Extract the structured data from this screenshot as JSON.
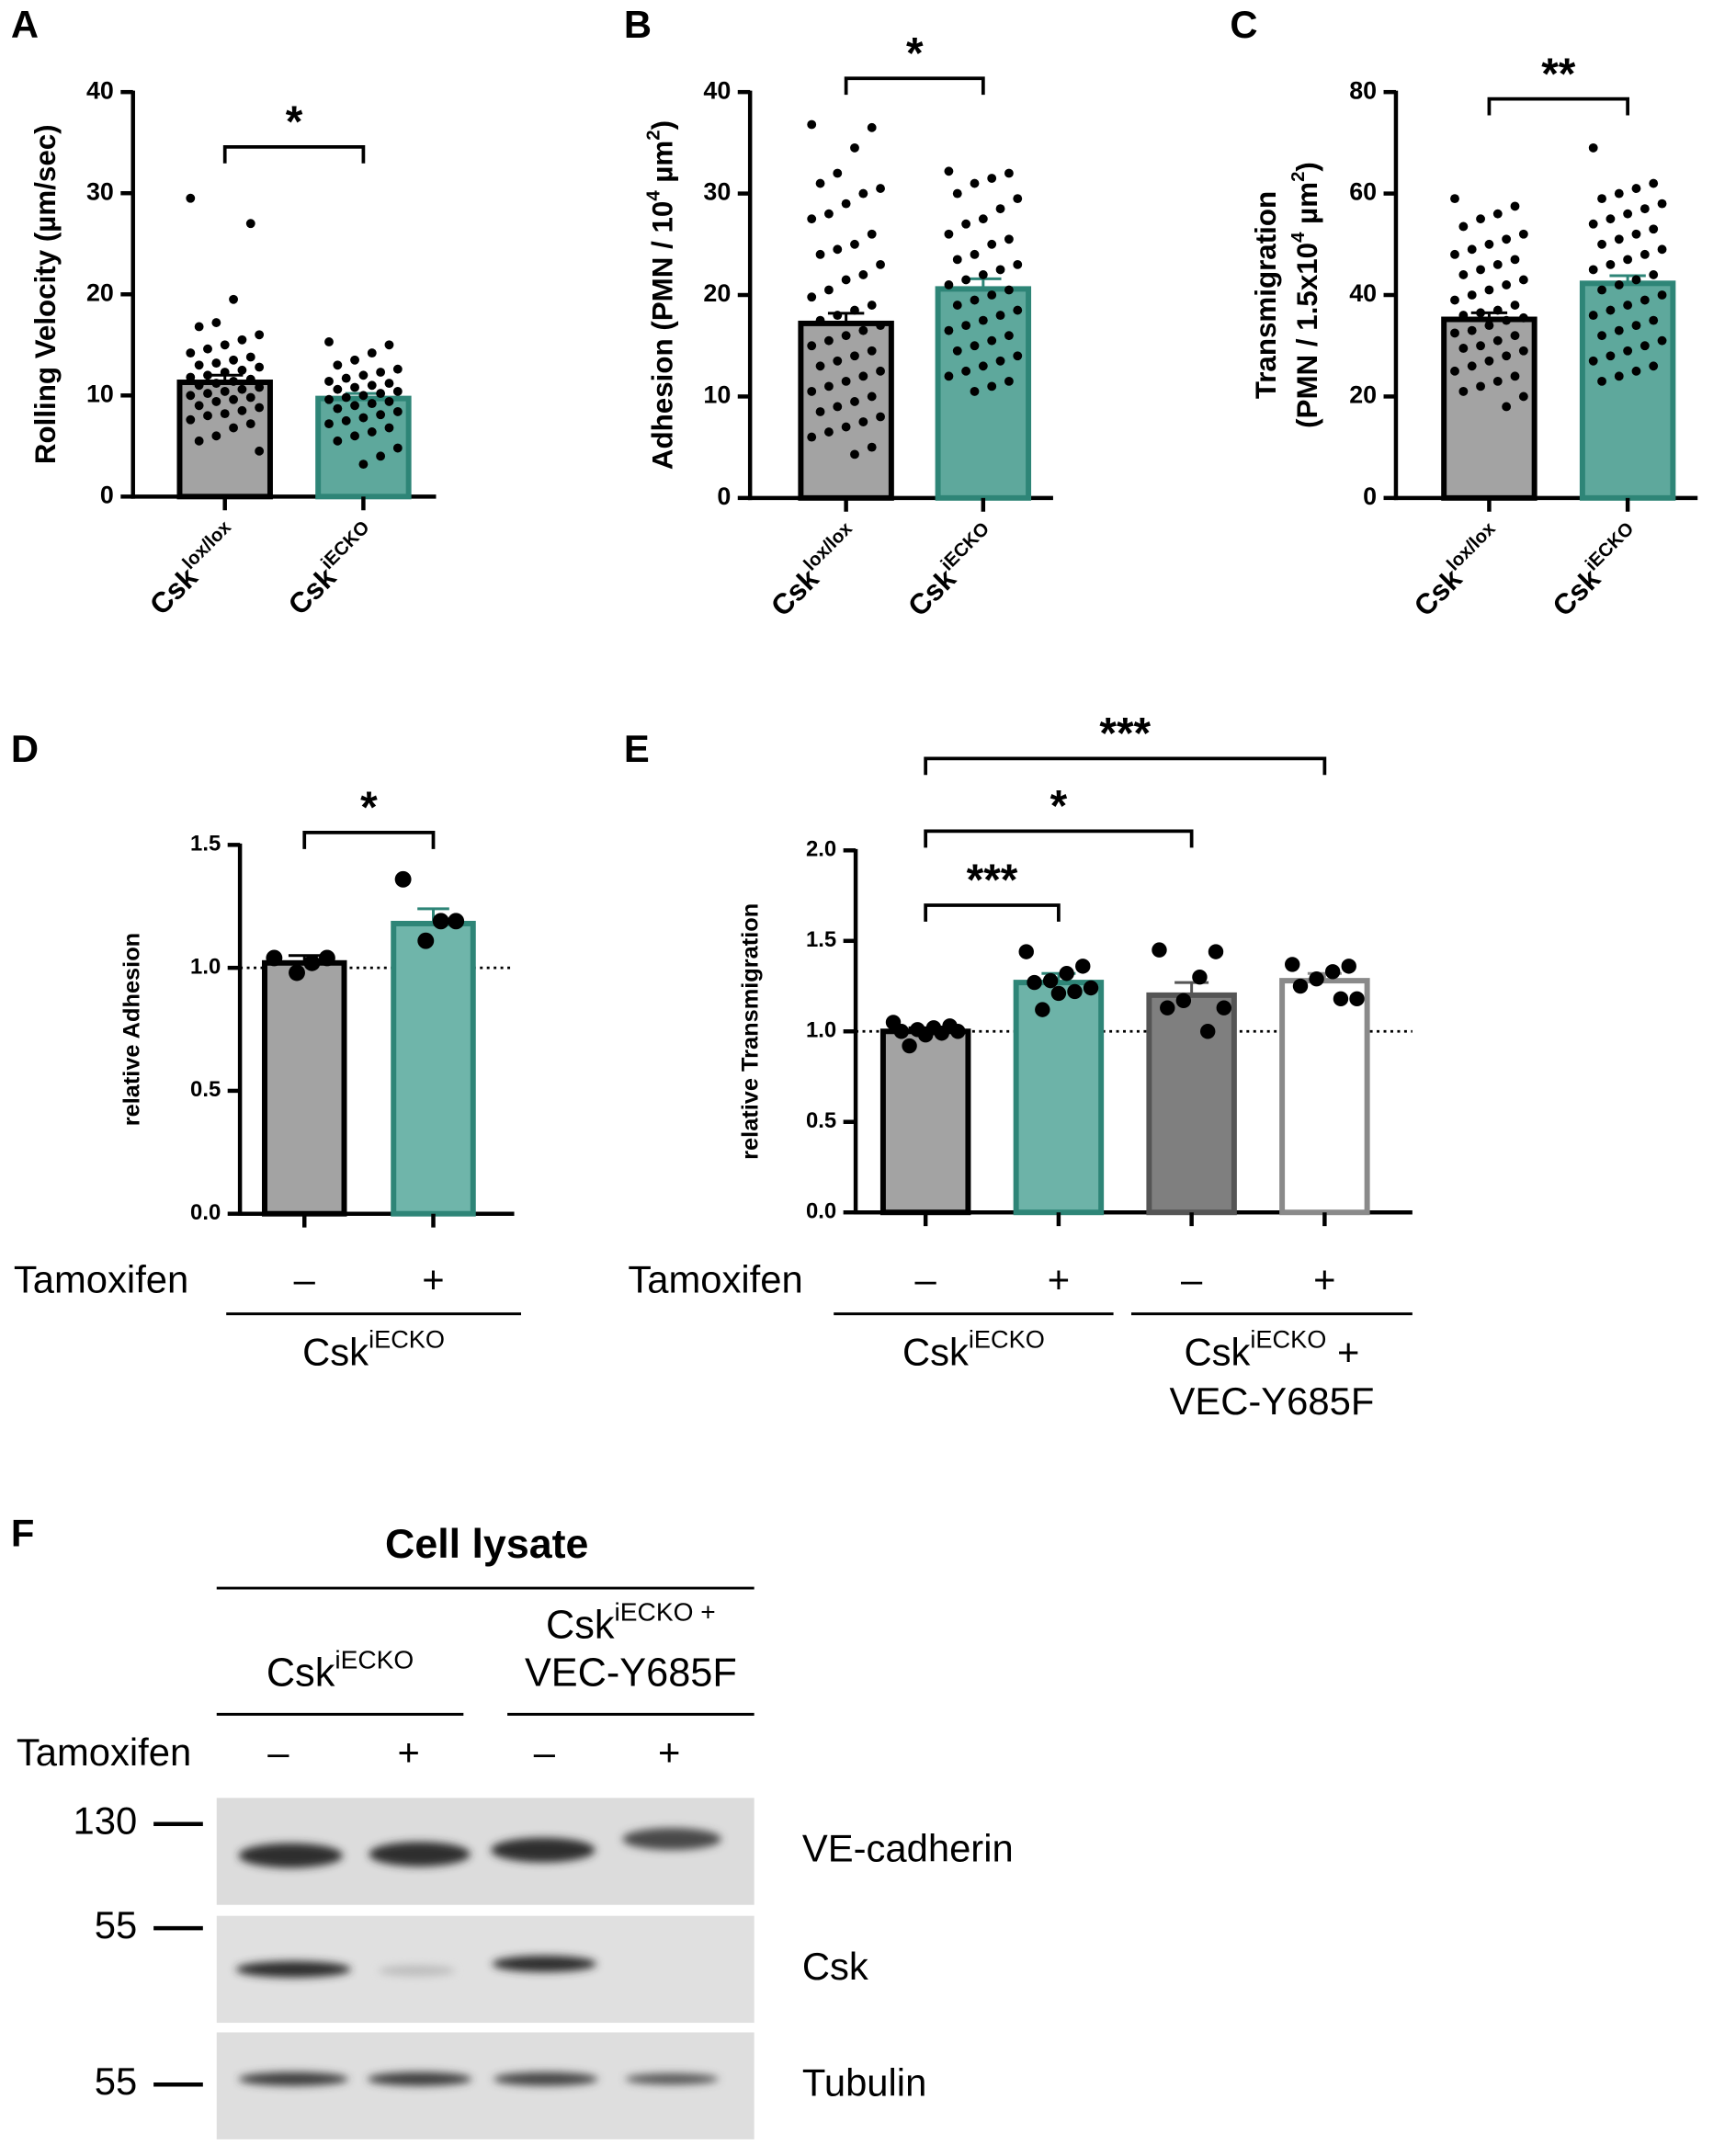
{
  "chart_data": [
    {
      "panel": "A",
      "type": "bar",
      "ylabel": [
        [
          {
            "text": "Rolling Velocity (µm/sec)"
          }
        ]
      ],
      "categories": [
        [
          {
            "text": "Csk"
          },
          {
            "text": "lox/lox",
            "sup": true
          }
        ],
        [
          {
            "text": "Csk"
          },
          {
            "text": "iECKO",
            "sup": true
          }
        ]
      ],
      "values": [
        11.3,
        9.7
      ],
      "errors": [
        0.7,
        0.5
      ],
      "points": [
        [
          29.5,
          27,
          19.5,
          17.2,
          16.8,
          16,
          15.5,
          15,
          14.6,
          14.2,
          13.8,
          13.5,
          13.2,
          13,
          12.8,
          12.5,
          12.3,
          12,
          11.8,
          11.6,
          11.4,
          11.2,
          11,
          10.8,
          10.6,
          10.4,
          10.2,
          10,
          9.8,
          9.6,
          9.4,
          9,
          8.8,
          8.5,
          8.2,
          8,
          7.6,
          7.2,
          6.8,
          6,
          5.5,
          4.5
        ],
        [
          15.3,
          15,
          14.2,
          13.5,
          13,
          12.6,
          12.3,
          12,
          11.7,
          11.4,
          11.2,
          11,
          10.8,
          10.6,
          10.4,
          10.2,
          10,
          9.8,
          9.6,
          9.4,
          9.2,
          9,
          8.7,
          8.4,
          8.1,
          7.8,
          7.5,
          7.2,
          6.8,
          6.4,
          6,
          5.5,
          4.8,
          4,
          3.2
        ]
      ],
      "colors": [
        "#a3a3a3",
        "#5ea89c"
      ],
      "edge_colors": [
        "#000000",
        "#2e8577"
      ],
      "ylim": [
        0,
        40
      ],
      "yticks": [
        0,
        10,
        20,
        30,
        40
      ],
      "significance": [
        {
          "groups": [
            0,
            1
          ],
          "label": "*"
        }
      ]
    },
    {
      "panel": "B",
      "type": "bar",
      "ylabel": [
        [
          {
            "text": "Adhesion (PMN / 10"
          },
          {
            "text": "4",
            "sup": true
          },
          {
            "text": " µm"
          },
          {
            "text": "2",
            "sup": true
          },
          {
            "text": ")"
          }
        ]
      ],
      "categories": [
        [
          {
            "text": "Csk"
          },
          {
            "text": "lox/lox",
            "sup": true
          }
        ],
        [
          {
            "text": "Csk"
          },
          {
            "text": "iECKO",
            "sup": true
          }
        ]
      ],
      "values": [
        17.2,
        20.6
      ],
      "errors": [
        1.0,
        1.0
      ],
      "points": [
        [
          36.8,
          36.5,
          34.5,
          32,
          31,
          30.5,
          30,
          29,
          28,
          27.5,
          26,
          25,
          24.5,
          24,
          23,
          22,
          21.5,
          20.5,
          19.8,
          19,
          18.5,
          18,
          17.5,
          17,
          16.5,
          16,
          15.5,
          15,
          14.5,
          14,
          13.5,
          13,
          12.5,
          12,
          11.5,
          11,
          10.5,
          10,
          9.5,
          9,
          8.5,
          8,
          7.5,
          7,
          6.5,
          6,
          5,
          4.3
        ],
        [
          32.2,
          32,
          31.5,
          31,
          30,
          29.5,
          28.5,
          27.5,
          27,
          26,
          25.5,
          25,
          24,
          23.5,
          23,
          22.5,
          22,
          21.5,
          21,
          20.5,
          20,
          19.5,
          19,
          18.5,
          18,
          17.5,
          17,
          16.5,
          16,
          15.5,
          15,
          14.5,
          14,
          13.5,
          13,
          12.5,
          12,
          11.5,
          11,
          10.5
        ]
      ],
      "colors": [
        "#a3a3a3",
        "#5ea89c"
      ],
      "edge_colors": [
        "#000000",
        "#2e8577"
      ],
      "ylim": [
        0,
        40
      ],
      "yticks": [
        0,
        10,
        20,
        30,
        40
      ],
      "significance": [
        {
          "groups": [
            0,
            1
          ],
          "label": "*"
        }
      ]
    },
    {
      "panel": "C",
      "type": "bar",
      "ylabel": [
        [
          {
            "text": "Transmigration"
          }
        ],
        [
          {
            "text": "(PMN / 1.5x10"
          },
          {
            "text": "4",
            "sup": true
          },
          {
            "text": " µm"
          },
          {
            "text": "2",
            "sup": true
          },
          {
            "text": ")"
          }
        ]
      ],
      "categories": [
        [
          {
            "text": "Csk"
          },
          {
            "text": "lox/lox",
            "sup": true
          }
        ],
        [
          {
            "text": "Csk"
          },
          {
            "text": "iECKO",
            "sup": true
          }
        ]
      ],
      "values": [
        35.2,
        42.3
      ],
      "errors": [
        1.3,
        1.5
      ],
      "points": [
        [
          59,
          57.5,
          56,
          55,
          53.5,
          52,
          51,
          50,
          49,
          48,
          47,
          46,
          45,
          44,
          43,
          42,
          41,
          40,
          39,
          38,
          37,
          36.5,
          36,
          35.5,
          35,
          34,
          33,
          32.5,
          32,
          31,
          30,
          29.5,
          29,
          28,
          27,
          26,
          25,
          24,
          23,
          22,
          21,
          20,
          18
        ],
        [
          69,
          62,
          61,
          60,
          59,
          58,
          57,
          56,
          55,
          54,
          53,
          52,
          51,
          50,
          49,
          48,
          47,
          46,
          45,
          44,
          43,
          42,
          41,
          40,
          39,
          38,
          37,
          36,
          35,
          34,
          33,
          32,
          31,
          30,
          29,
          28,
          27,
          26,
          25,
          24,
          23
        ]
      ],
      "colors": [
        "#a3a3a3",
        "#5ea89c"
      ],
      "edge_colors": [
        "#000000",
        "#2e8577"
      ],
      "ylim": [
        0,
        80
      ],
      "yticks": [
        0,
        20,
        40,
        60,
        80
      ],
      "significance": [
        {
          "groups": [
            0,
            1
          ],
          "label": "**"
        }
      ]
    },
    {
      "panel": "D",
      "type": "bar",
      "ylabel": [
        [
          {
            "text": "relative Adhesion"
          }
        ]
      ],
      "row_label": "Tamoxifen",
      "categories": [
        [
          {
            "text": "–"
          }
        ],
        [
          {
            "text": "+"
          }
        ]
      ],
      "category_groups": [
        {
          "lines": [
            [
              {
                "text": "Csk"
              },
              {
                "text": "iECKO",
                "sup": true
              }
            ]
          ]
        }
      ],
      "values": [
        1.02,
        1.18
      ],
      "errors": [
        0.03,
        0.06
      ],
      "points": [
        [
          1.04,
          1.04,
          1.02,
          0.98
        ],
        [
          1.36,
          1.19,
          1.19,
          1.11
        ]
      ],
      "colors": [
        "#a3a3a3",
        "#6fb5aa"
      ],
      "edge_colors": [
        "#000000",
        "#2e8577"
      ],
      "ylim": [
        0,
        1.5
      ],
      "yticks": [
        {
          "value": 0,
          "label": "0.0"
        },
        0.5,
        {
          "value": 1,
          "label": "1.0"
        },
        1.5
      ],
      "refline": 1,
      "significance": [
        {
          "groups": [
            0,
            1
          ],
          "label": "*"
        }
      ]
    },
    {
      "panel": "E",
      "type": "bar",
      "ylabel": [
        [
          {
            "text": "relative Transmigration"
          }
        ]
      ],
      "row_label": "Tamoxifen",
      "categories": [
        [
          {
            "text": "–"
          }
        ],
        [
          {
            "text": "+"
          }
        ],
        [
          {
            "text": "–"
          }
        ],
        [
          {
            "text": "+"
          }
        ]
      ],
      "category_groups": [
        {
          "lines": [
            [
              {
                "text": "Csk"
              },
              {
                "text": "iECKO",
                "sup": true
              }
            ]
          ]
        },
        {
          "lines": [
            [
              {
                "text": "Csk"
              },
              {
                "text": "iECKO",
                "sup": true
              },
              {
                "text": " +"
              }
            ],
            [
              {
                "text": "VEC-Y685F"
              }
            ]
          ]
        }
      ],
      "values": [
        1.0,
        1.27,
        1.2,
        1.28
      ],
      "errors": [
        0.02,
        0.05,
        0.07,
        0.04
      ],
      "points": [
        [
          1.05,
          1.03,
          1.02,
          1.01,
          1.0,
          1.0,
          0.99,
          0.98,
          0.92
        ],
        [
          1.44,
          1.36,
          1.32,
          1.28,
          1.27,
          1.24,
          1.22,
          1.21,
          1.12
        ],
        [
          1.45,
          1.44,
          1.3,
          1.17,
          1.13,
          1.13,
          1.0
        ],
        [
          1.37,
          1.36,
          1.33,
          1.29,
          1.25,
          1.18,
          1.18
        ]
      ],
      "colors": [
        "#a3a3a3",
        "#6db3a8",
        "#7f7f7f",
        "#ffffff"
      ],
      "edge_colors": [
        "#000000",
        "#2e8577",
        "#555555",
        "#8a8a8a"
      ],
      "ylim": [
        0,
        2
      ],
      "yticks": [
        {
          "value": 0,
          "label": "0.0"
        },
        0.5,
        {
          "value": 1,
          "label": "1.0"
        },
        1.5,
        {
          "value": 2,
          "label": "2.0"
        }
      ],
      "refline": 1,
      "significance": [
        {
          "groups": [
            0,
            1
          ],
          "label": "***"
        },
        {
          "groups": [
            0,
            2
          ],
          "label": "*"
        },
        {
          "groups": [
            0,
            3
          ],
          "label": "***"
        }
      ]
    }
  ],
  "blot": {
    "panel": "F",
    "title": "Cell lysate",
    "groups": [
      {
        "lines": [
          [
            {
              "text": "Csk"
            },
            {
              "text": "iECKO",
              "sup": true
            }
          ]
        ]
      },
      {
        "lines": [
          [
            {
              "text": "Csk"
            },
            {
              "text": "iECKO +",
              "sup": true
            }
          ],
          [
            {
              "text": "VEC-Y685F"
            }
          ]
        ]
      }
    ],
    "row_label": "Tamoxifen",
    "lanes": [
      "–",
      "+",
      "–",
      "+"
    ],
    "markers": [
      130,
      55,
      55
    ],
    "proteins": [
      "VE-cadherin",
      "Csk",
      "Tubulin"
    ]
  }
}
